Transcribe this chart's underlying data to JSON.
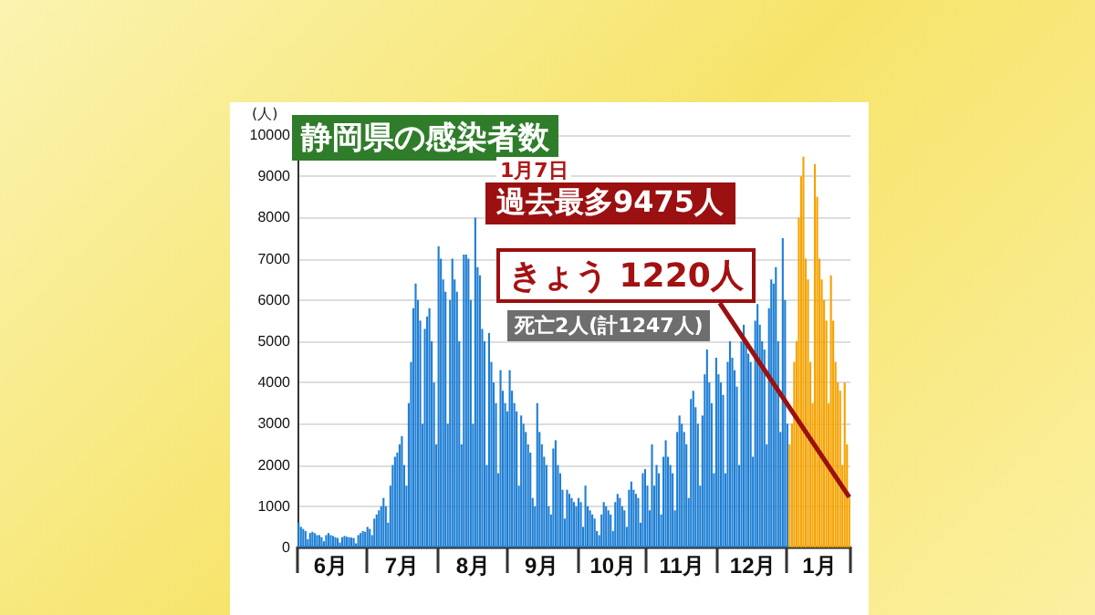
{
  "chart_data": {
    "type": "bar",
    "title": "静岡県の感染者数",
    "ylabel": "(人)",
    "annotations": [
      "1月7日",
      "過去最多9475人",
      "きょう 1220人",
      "死亡2人(計1247人)"
    ],
    "categories": [
      null,
      null,
      null,
      null,
      null,
      null,
      null,
      null,
      null,
      null,
      null,
      null,
      null,
      null,
      "6月",
      null,
      null,
      null,
      null,
      null,
      null,
      null,
      null,
      null,
      null,
      null,
      null,
      null,
      null,
      null,
      null,
      null,
      null,
      null,
      null,
      null,
      null,
      null,
      null,
      null,
      null,
      null,
      null,
      null,
      null,
      "7月",
      null,
      null,
      null,
      null,
      null,
      null,
      null,
      null,
      null,
      null,
      null,
      null,
      null,
      null,
      null,
      null,
      null,
      null,
      null,
      null,
      null,
      null,
      null,
      null,
      null,
      null,
      null,
      null,
      null,
      null,
      "8月",
      null,
      null,
      null,
      null,
      null,
      null,
      null,
      null,
      null,
      null,
      null,
      null,
      null,
      null,
      null,
      null,
      null,
      null,
      null,
      null,
      null,
      null,
      null,
      null,
      null,
      null,
      null,
      null,
      null,
      "9月",
      null,
      null,
      null,
      null,
      null,
      null,
      null,
      null,
      null,
      null,
      null,
      null,
      null,
      null,
      null,
      null,
      null,
      null,
      null,
      null,
      null,
      null,
      null,
      null,
      null,
      null,
      null,
      null,
      null,
      null,
      "10月",
      null,
      null,
      null,
      null,
      null,
      null,
      null,
      null,
      null,
      null,
      null,
      null,
      null,
      null,
      null,
      null,
      null,
      null,
      null,
      null,
      null,
      null,
      null,
      null,
      null,
      null,
      null,
      null,
      null,
      "11月",
      null,
      null,
      null,
      null,
      null,
      null,
      null,
      null,
      null,
      null,
      null,
      null,
      null,
      null,
      null,
      null,
      null,
      null,
      null,
      null,
      null,
      null,
      null,
      null,
      null,
      null,
      null,
      null,
      null,
      null,
      "12月",
      null,
      null,
      null,
      null,
      null,
      null,
      null,
      null,
      null,
      null,
      null,
      null,
      null,
      null,
      null,
      null,
      null,
      null,
      null,
      null,
      null,
      null,
      null,
      null,
      null,
      null,
      null,
      null,
      "1月",
      null,
      null,
      null,
      null,
      null,
      null,
      null,
      null,
      null,
      null,
      null,
      null,
      null
    ],
    "series": [
      {
        "color": "#1f7fd4",
        "values": [
          600,
          500,
          450,
          400,
          200,
          350,
          380,
          350,
          300,
          300,
          250,
          150,
          300,
          350,
          300,
          280,
          250,
          230,
          120,
          250,
          280,
          260,
          250,
          240,
          230,
          100,
          300,
          350,
          400,
          380,
          500,
          450,
          300,
          700,
          800,
          900,
          1000,
          1200,
          1000,
          600,
          1500,
          2000,
          2200,
          2300,
          2500,
          2700,
          2000,
          1500,
          3500,
          4500,
          5800,
          6400,
          6000,
          5500,
          3000,
          5300,
          5600,
          5800,
          5000,
          4000,
          2500,
          7300,
          7000,
          6500,
          6200,
          3000,
          6000,
          7000,
          6500,
          6200,
          5000,
          2500,
          7100,
          7100,
          7000,
          6000,
          3000,
          8000,
          6800,
          6600,
          5300,
          5000,
          2000,
          5200,
          4500,
          4000,
          3500,
          1800,
          4300,
          3800,
          3500,
          3300,
          4300,
          3800,
          3500,
          3300,
          1500,
          3200,
          3000,
          2800,
          2500,
          2300,
          1200,
          1000,
          3500,
          2800,
          2500,
          2200,
          2000,
          1000,
          800,
          2400,
          2600,
          2000,
          1800,
          1400,
          700,
          1400,
          1300,
          1200,
          1100,
          1000,
          1200,
          1100,
          500,
          1500,
          1000,
          900,
          800,
          700,
          400,
          300,
          800,
          1100,
          1000,
          900,
          800,
          400,
          1100,
          1300,
          1200,
          1000,
          900,
          500,
          1400,
          1600,
          1400,
          1300,
          1200,
          600,
          1800,
          1900,
          1500,
          900,
          2500,
          1500,
          2000,
          1800,
          800,
          2200,
          2600,
          2200,
          2000,
          1800,
          900,
          2800,
          3200,
          3000,
          2800,
          2500,
          1200,
          3600,
          3800,
          3400,
          3000,
          1500,
          3200,
          4200,
          4800,
          4000,
          3500,
          1800,
          4600,
          4200,
          4000,
          3700,
          1800,
          4500,
          5000,
          4600,
          4300,
          3900,
          2000,
          5000,
          5400,
          5000,
          4700,
          4500,
          2200,
          5500,
          5900,
          5400,
          5000,
          4800,
          2500,
          5800,
          6500,
          6400,
          6800,
          5000,
          2800,
          7500,
          6000,
          3000,
          null,
          null,
          null,
          null,
          null,
          null,
          null,
          null,
          null,
          null,
          null,
          null,
          null,
          null,
          null,
          null,
          null,
          null,
          null,
          null,
          null,
          null,
          null,
          null,
          null,
          null,
          null
        ]
      },
      {
        "color": "#f5a300",
        "values": [
          null,
          null,
          null,
          null,
          null,
          null,
          null,
          null,
          null,
          null,
          null,
          null,
          null,
          null,
          null,
          null,
          null,
          null,
          null,
          null,
          null,
          null,
          null,
          null,
          null,
          null,
          null,
          null,
          null,
          null,
          null,
          null,
          null,
          null,
          null,
          null,
          null,
          null,
          null,
          null,
          null,
          null,
          null,
          null,
          null,
          null,
          null,
          null,
          null,
          null,
          null,
          null,
          null,
          null,
          null,
          null,
          null,
          null,
          null,
          null,
          null,
          null,
          null,
          null,
          null,
          null,
          null,
          null,
          null,
          null,
          null,
          null,
          null,
          null,
          null,
          null,
          null,
          null,
          null,
          null,
          null,
          null,
          null,
          null,
          null,
          null,
          null,
          null,
          null,
          null,
          null,
          null,
          null,
          null,
          null,
          null,
          null,
          null,
          null,
          null,
          null,
          null,
          null,
          null,
          null,
          null,
          null,
          null,
          null,
          null,
          null,
          null,
          null,
          null,
          null,
          null,
          null,
          null,
          null,
          null,
          null,
          null,
          null,
          null,
          null,
          null,
          null,
          null,
          null,
          null,
          null,
          null,
          null,
          null,
          null,
          null,
          null,
          null,
          null,
          null,
          null,
          null,
          null,
          null,
          null,
          null,
          null,
          null,
          null,
          null,
          null,
          null,
          null,
          null,
          null,
          null,
          null,
          null,
          null,
          null,
          null,
          null,
          null,
          null,
          null,
          null,
          null,
          null,
          null,
          null,
          null,
          null,
          null,
          null,
          null,
          null,
          null,
          null,
          null,
          null,
          null,
          null,
          null,
          null,
          null,
          null,
          null,
          null,
          null,
          null,
          null,
          null,
          null,
          null,
          null,
          null,
          null,
          null,
          null,
          null,
          null,
          null,
          null,
          null,
          null,
          null,
          null,
          null,
          null,
          null,
          null,
          null,
          null,
          null,
          2500,
          3000,
          4500,
          5000,
          8000,
          9000,
          9475,
          7000,
          6500,
          4500,
          3500,
          9300,
          8500,
          7000,
          6500,
          6000,
          5500,
          3500,
          6600,
          5500,
          4500,
          4000,
          3800,
          2000,
          4000,
          2500,
          1220
        ]
      }
    ],
    "ylim": [
      0,
      10000
    ],
    "yticks": [
      0,
      1000,
      2000,
      3000,
      4000,
      5000,
      6000,
      7000,
      8000,
      9000,
      10000
    ],
    "grid": "y"
  }
}
